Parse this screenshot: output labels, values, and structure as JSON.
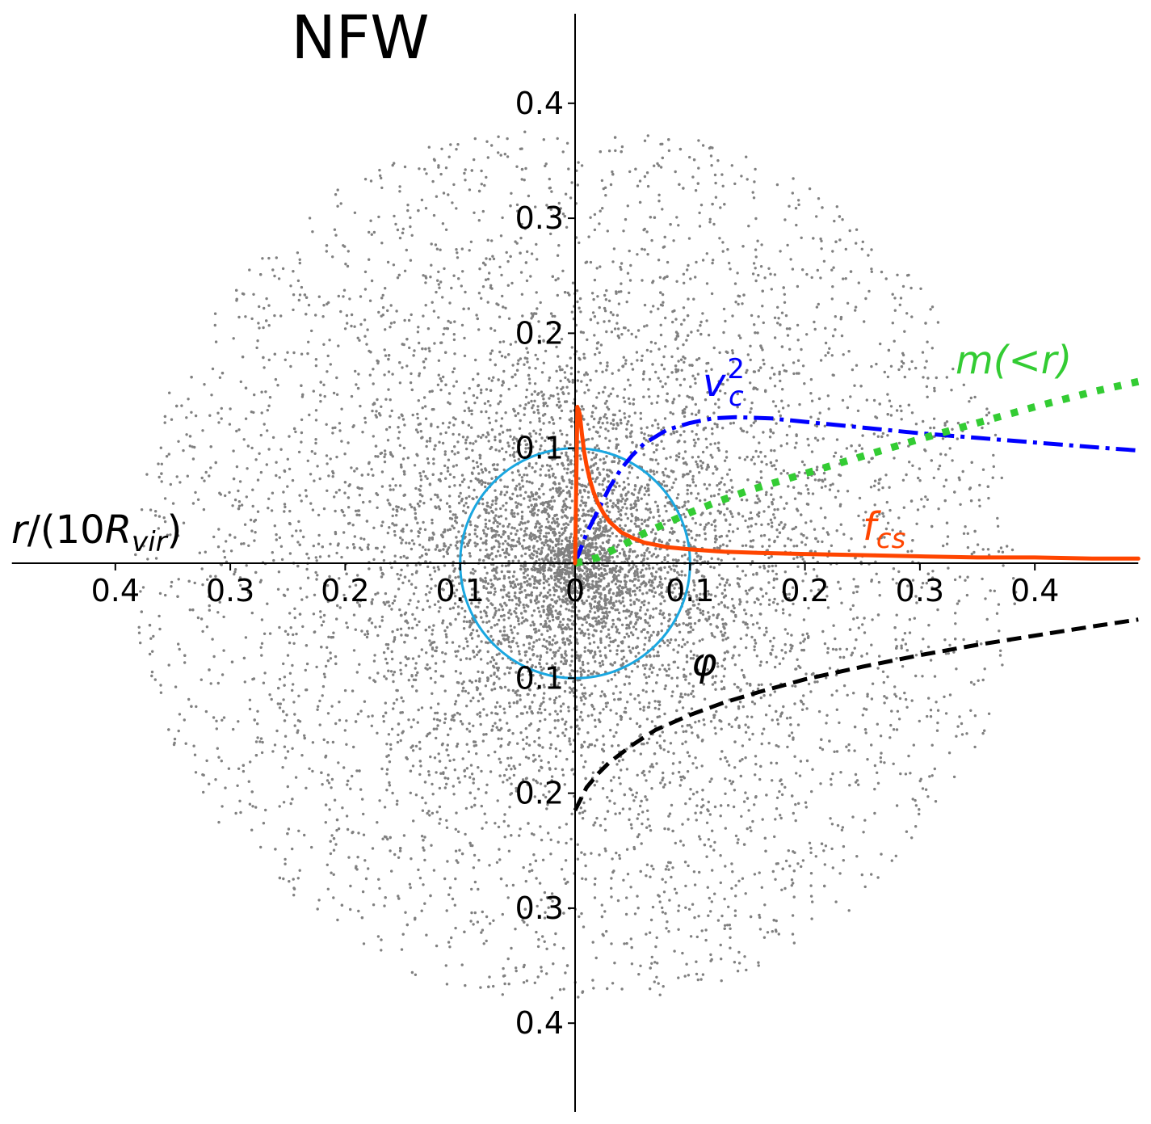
{
  "chart_data": {
    "type": "scatter",
    "title": "NFW",
    "xlabel": {
      "base": "r/(10R",
      "subscript": "vir",
      "close": ")"
    },
    "xlim": [
      -0.49,
      0.49
    ],
    "ylim": [
      -0.49,
      0.4
    ],
    "x_ticks": [
      -0.4,
      -0.3,
      -0.2,
      -0.1,
      0,
      0.1,
      0.2,
      0.3,
      0.4
    ],
    "x_tick_labels": [
      "0.4",
      "0.3",
      "0.2",
      "0.1",
      "0",
      "0.1",
      "0.2",
      "0.3",
      "0.4"
    ],
    "y_ticks": [
      0.4,
      0.3,
      0.2,
      0.1,
      -0.1,
      -0.2,
      -0.3,
      -0.4
    ],
    "y_tick_labels": [
      "0.4",
      "0.3",
      "0.2",
      "0.1",
      "0.1",
      "0.2",
      "0.3",
      "0.4"
    ],
    "grid": false,
    "scatter": {
      "particle_count": 9000,
      "outer_radius": 0.385,
      "scale_radius": 0.06,
      "color": "#808080"
    },
    "circle": {
      "radius": 0.1,
      "color": "#1aa7e0"
    },
    "series": [
      {
        "name": "v_c^2",
        "label": {
          "base": "v",
          "subscript": "c",
          "superscript": "2"
        },
        "color": "#0000ff",
        "style": "dashdot",
        "x": [
          0,
          0.01,
          0.02,
          0.03,
          0.04,
          0.05,
          0.06,
          0.08,
          0.1,
          0.12,
          0.14,
          0.17,
          0.2,
          0.25,
          0.3,
          0.35,
          0.4,
          0.45,
          0.49
        ],
        "y": [
          0,
          0.026,
          0.046,
          0.066,
          0.082,
          0.094,
          0.104,
          0.116,
          0.122,
          0.126,
          0.127,
          0.126,
          0.123,
          0.118,
          0.113,
          0.109,
          0.105,
          0.101,
          0.098
        ]
      },
      {
        "name": "m(<r)",
        "label": {
          "base": "m(<r)"
        },
        "color": "#33cc33",
        "style": "dotted",
        "x": [
          0,
          0.02,
          0.04,
          0.06,
          0.08,
          0.1,
          0.12,
          0.15,
          0.2,
          0.25,
          0.3,
          0.35,
          0.4,
          0.45,
          0.49
        ],
        "y": [
          0,
          0.005,
          0.015,
          0.026,
          0.035,
          0.044,
          0.052,
          0.063,
          0.078,
          0.093,
          0.108,
          0.122,
          0.136,
          0.149,
          0.158
        ]
      },
      {
        "name": "f_cs",
        "label": {
          "base": "f",
          "subscript": "cs"
        },
        "color": "#ff4500",
        "style": "solid",
        "x": [
          0,
          0.002,
          0.004,
          0.006,
          0.008,
          0.01,
          0.013,
          0.016,
          0.02,
          0.025,
          0.03,
          0.04,
          0.05,
          0.06,
          0.08,
          0.1,
          0.13,
          0.16,
          0.2,
          0.25,
          0.3,
          0.35,
          0.4,
          0.45,
          0.49
        ],
        "y": [
          0,
          0.136,
          0.13,
          0.112,
          0.096,
          0.085,
          0.072,
          0.062,
          0.052,
          0.043,
          0.036,
          0.027,
          0.022,
          0.018,
          0.014,
          0.012,
          0.01,
          0.009,
          0.008,
          0.007,
          0.006,
          0.005,
          0.005,
          0.004,
          0.004
        ]
      },
      {
        "name": "phi",
        "label": {
          "base": "φ"
        },
        "color": "#000000",
        "style": "dashed",
        "x": [
          0,
          0.01,
          0.02,
          0.03,
          0.05,
          0.07,
          0.1,
          0.13,
          0.16,
          0.2,
          0.25,
          0.3,
          0.35,
          0.4,
          0.45,
          0.49
        ],
        "y": [
          -0.215,
          -0.195,
          -0.183,
          -0.173,
          -0.158,
          -0.145,
          -0.132,
          -0.121,
          -0.112,
          -0.101,
          -0.09,
          -0.08,
          -0.071,
          -0.063,
          -0.055,
          -0.049
        ]
      }
    ]
  }
}
